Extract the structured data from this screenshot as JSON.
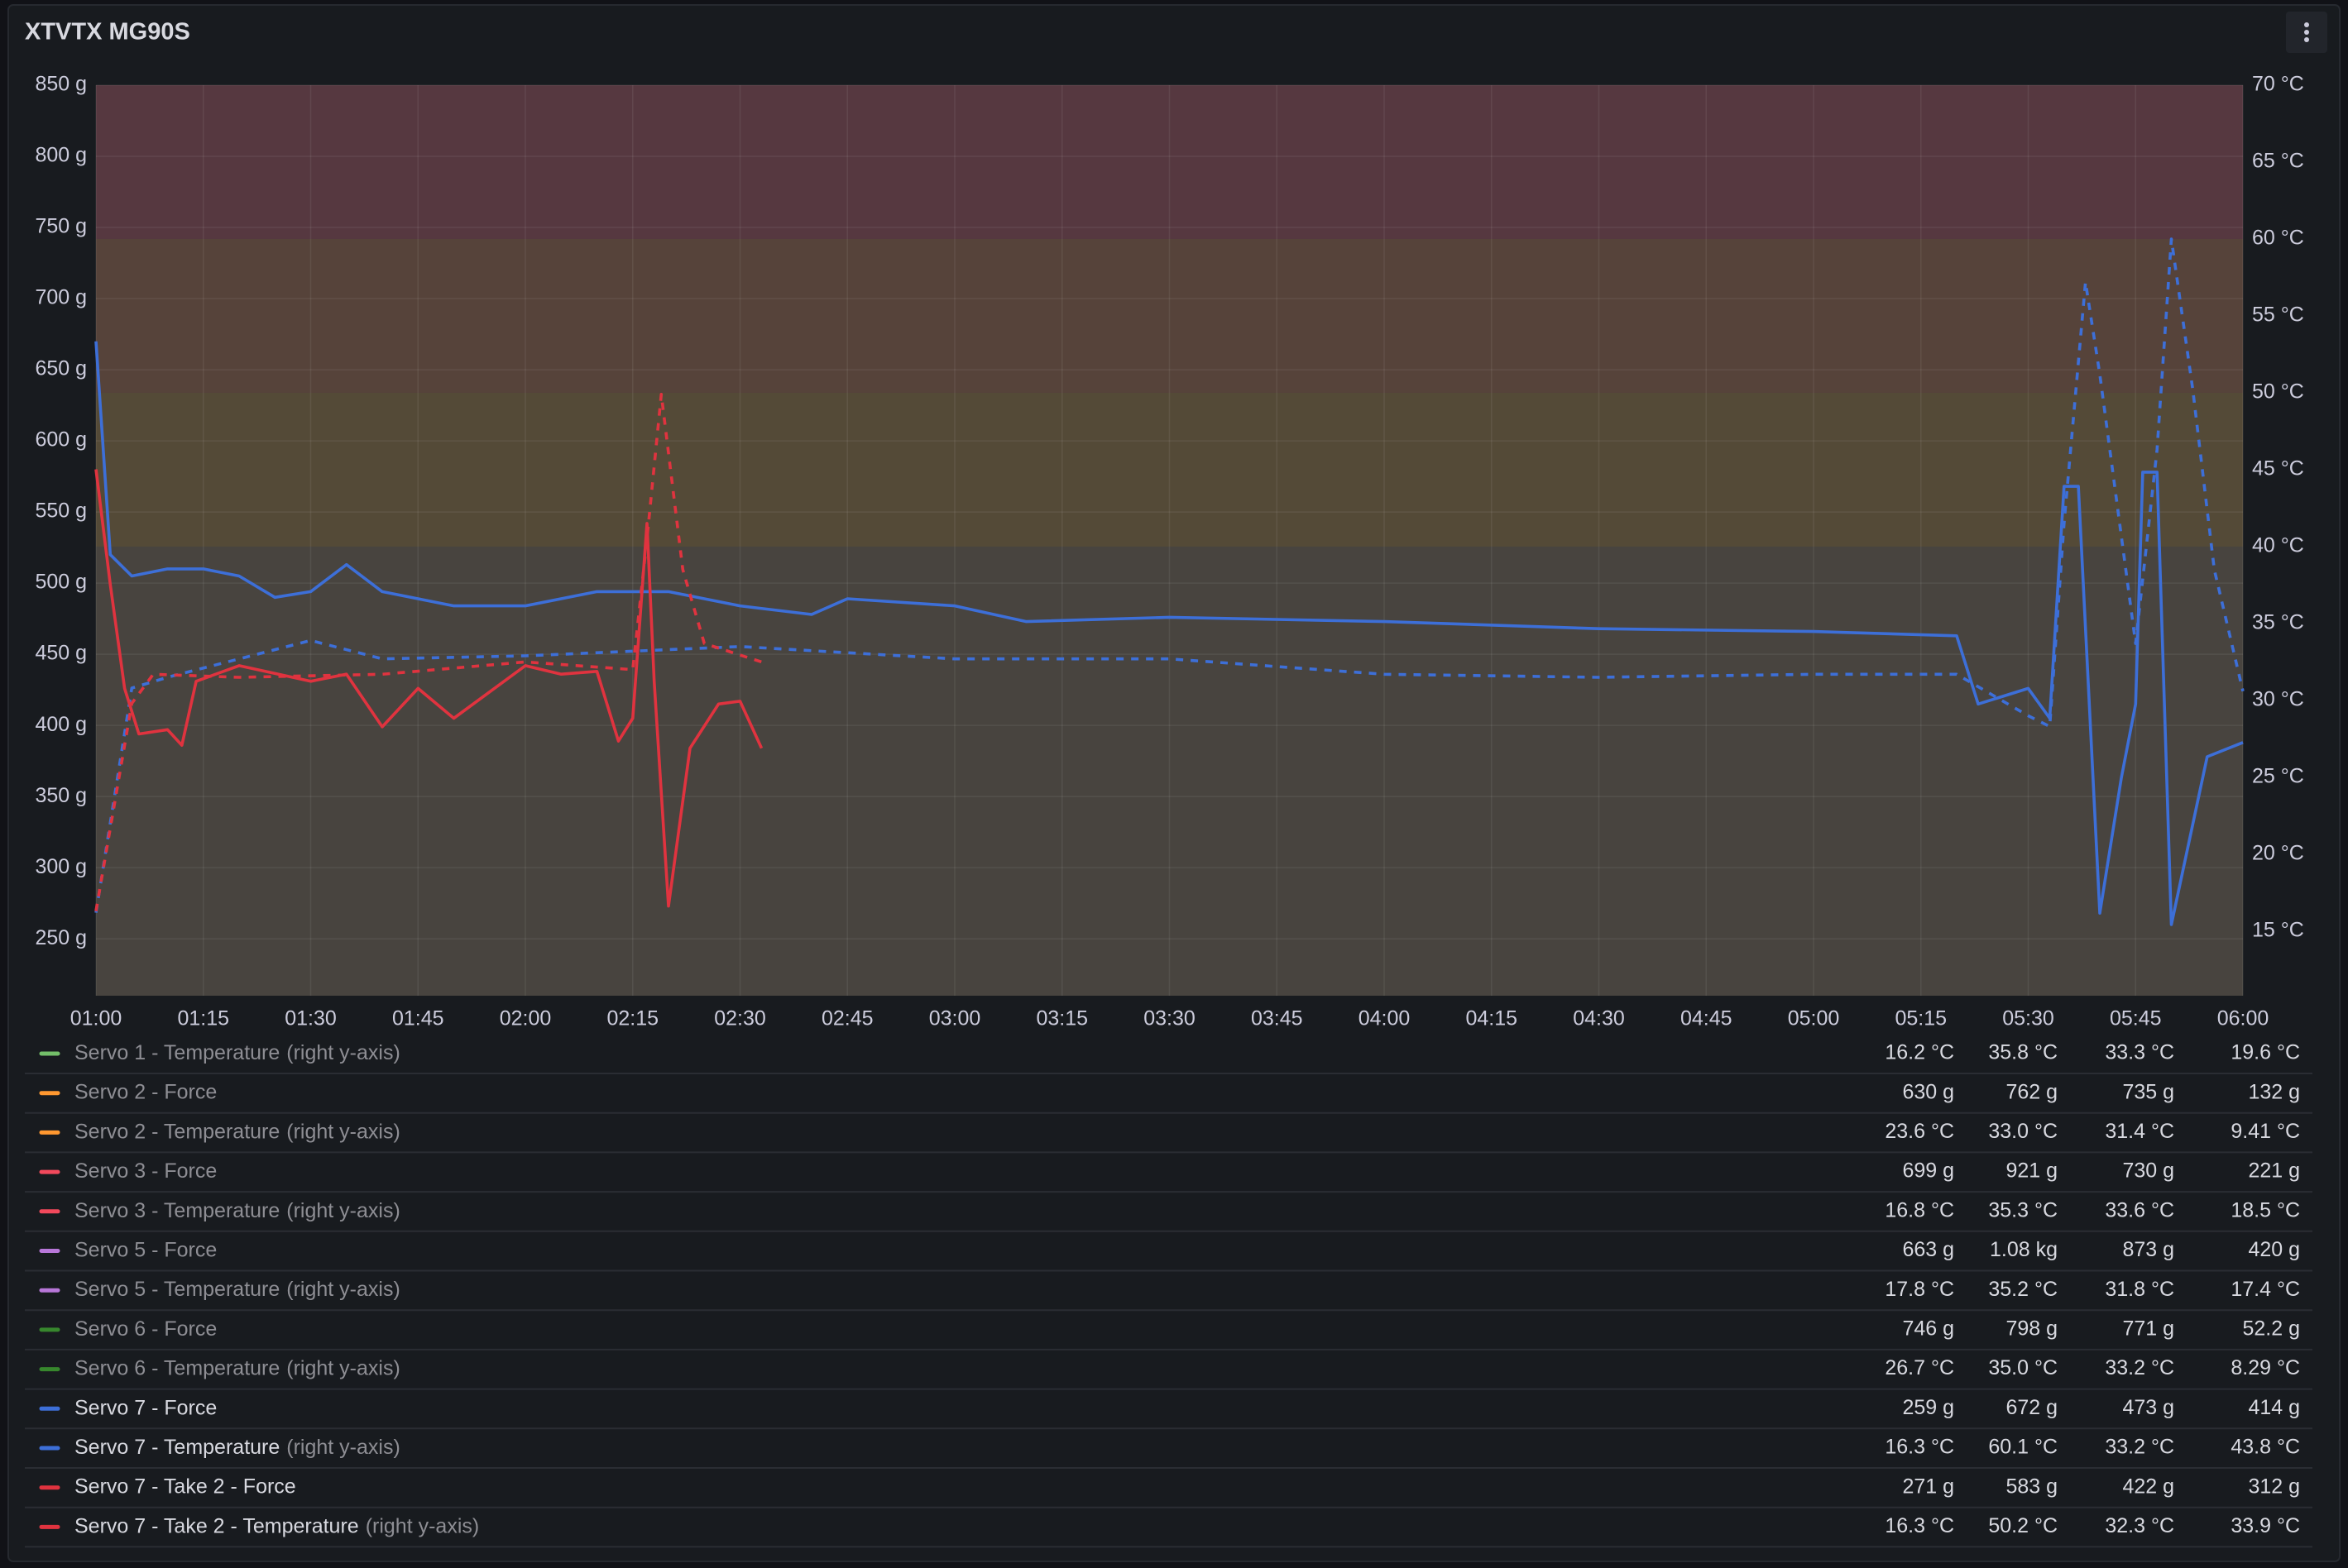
{
  "chart_data": {
    "type": "line",
    "title": "XTVTX MG90S",
    "axis_note": "(right y-axis)",
    "xlim": [
      60,
      360
    ],
    "xticks": [
      {
        "value": 60,
        "label": "01:00"
      },
      {
        "value": 75,
        "label": "01:15"
      },
      {
        "value": 90,
        "label": "01:30"
      },
      {
        "value": 105,
        "label": "01:45"
      },
      {
        "value": 120,
        "label": "02:00"
      },
      {
        "value": 135,
        "label": "02:15"
      },
      {
        "value": 150,
        "label": "02:30"
      },
      {
        "value": 165,
        "label": "02:45"
      },
      {
        "value": 180,
        "label": "03:00"
      },
      {
        "value": 195,
        "label": "03:15"
      },
      {
        "value": 210,
        "label": "03:30"
      },
      {
        "value": 225,
        "label": "03:45"
      },
      {
        "value": 240,
        "label": "04:00"
      },
      {
        "value": 255,
        "label": "04:15"
      },
      {
        "value": 270,
        "label": "04:30"
      },
      {
        "value": 285,
        "label": "04:45"
      },
      {
        "value": 300,
        "label": "05:00"
      },
      {
        "value": 315,
        "label": "05:15"
      },
      {
        "value": 330,
        "label": "05:30"
      },
      {
        "value": 345,
        "label": "05:45"
      },
      {
        "value": 360,
        "label": "06:00"
      }
    ],
    "ylim": [
      210,
      850
    ],
    "yticks": [
      {
        "value": 250,
        "label": "250 g"
      },
      {
        "value": 300,
        "label": "300 g"
      },
      {
        "value": 350,
        "label": "350 g"
      },
      {
        "value": 400,
        "label": "400 g"
      },
      {
        "value": 450,
        "label": "450 g"
      },
      {
        "value": 500,
        "label": "500 g"
      },
      {
        "value": 550,
        "label": "550 g"
      },
      {
        "value": 600,
        "label": "600 g"
      },
      {
        "value": 650,
        "label": "650 g"
      },
      {
        "value": 700,
        "label": "700 g"
      },
      {
        "value": 750,
        "label": "750 g"
      },
      {
        "value": 800,
        "label": "800 g"
      },
      {
        "value": 850,
        "label": "850 g"
      }
    ],
    "y2lim": [
      10.8,
      70
    ],
    "y2ticks": [
      {
        "value": 15,
        "label": "15 °C"
      },
      {
        "value": 20,
        "label": "20 °C"
      },
      {
        "value": 25,
        "label": "25 °C"
      },
      {
        "value": 30,
        "label": "30 °C"
      },
      {
        "value": 35,
        "label": "35 °C"
      },
      {
        "value": 40,
        "label": "40 °C"
      },
      {
        "value": 45,
        "label": "45 °C"
      },
      {
        "value": 50,
        "label": "50 °C"
      },
      {
        "value": 55,
        "label": "55 °C"
      },
      {
        "value": 60,
        "label": "60 °C"
      },
      {
        "value": 65,
        "label": "65 °C"
      },
      {
        "value": 70,
        "label": "70 °C"
      }
    ],
    "grid": true,
    "threshold_base_color": "#48443f",
    "thresholds": [
      {
        "value": 40,
        "color": "#544a37"
      },
      {
        "value": 50,
        "color": "#56433a"
      },
      {
        "value": 60,
        "color": "#563840"
      }
    ],
    "series": [
      {
        "name": "Servo 1 - Temperature",
        "color": "#73bf69",
        "axis": "y2",
        "hidden": true,
        "stats": [
          "16.2 °C",
          "35.8 °C",
          "33.3 °C",
          "19.6 °C"
        ]
      },
      {
        "name": "Servo 2 - Force",
        "color": "#ff9830",
        "hidden": true,
        "stats": [
          "630 g",
          "762 g",
          "735 g",
          "132 g"
        ]
      },
      {
        "name": "Servo 2 - Temperature",
        "color": "#ff9830",
        "axis": "y2",
        "hidden": true,
        "stats": [
          "23.6 °C",
          "33.0 °C",
          "31.4 °C",
          "9.41 °C"
        ]
      },
      {
        "name": "Servo 3 - Force",
        "color": "#f2495c",
        "hidden": true,
        "stats": [
          "699 g",
          "921 g",
          "730 g",
          "221 g"
        ]
      },
      {
        "name": "Servo 3 - Temperature",
        "color": "#f2495c",
        "axis": "y2",
        "hidden": true,
        "stats": [
          "16.8 °C",
          "35.3 °C",
          "33.6 °C",
          "18.5 °C"
        ]
      },
      {
        "name": "Servo 5 - Force",
        "color": "#b877d9",
        "hidden": true,
        "stats": [
          "663 g",
          "1.08 kg",
          "873 g",
          "420 g"
        ]
      },
      {
        "name": "Servo 5 - Temperature",
        "color": "#b877d9",
        "axis": "y2",
        "hidden": true,
        "stats": [
          "17.8 °C",
          "35.2 °C",
          "31.8 °C",
          "17.4 °C"
        ]
      },
      {
        "name": "Servo 6 - Force",
        "color": "#37872d",
        "hidden": true,
        "stats": [
          "746 g",
          "798 g",
          "771 g",
          "52.2 g"
        ]
      },
      {
        "name": "Servo 6 - Temperature",
        "color": "#37872d",
        "axis": "y2",
        "hidden": true,
        "stats": [
          "26.7 °C",
          "35.0 °C",
          "33.2 °C",
          "8.29 °C"
        ]
      },
      {
        "name": "Servo 7 - Force",
        "color": "#3d6fd8",
        "hidden": false,
        "stats": [
          "259 g",
          "672 g",
          "473 g",
          "414 g"
        ],
        "x": [
          60,
          62,
          65,
          70,
          75,
          80,
          85,
          90,
          95,
          100,
          105,
          110,
          120,
          130,
          135,
          140,
          150,
          160,
          165,
          180,
          190,
          210,
          240,
          270,
          300,
          320,
          323,
          330,
          333,
          335,
          337,
          340,
          343,
          345,
          346,
          348,
          350,
          355,
          360
        ],
        "values": [
          670,
          520,
          505,
          510,
          510,
          505,
          490,
          494,
          513,
          494,
          489,
          484,
          484,
          494,
          494,
          494,
          484,
          478,
          489,
          484,
          473,
          476,
          473,
          468,
          466,
          463,
          415,
          426,
          405,
          568,
          568,
          268,
          363,
          415,
          578,
          578,
          260,
          378,
          388
        ]
      },
      {
        "name": "Servo 7 - Temperature",
        "color": "#3d6fd8",
        "axis": "y2",
        "dash": true,
        "hidden": false,
        "stats": [
          "16.3 °C",
          "60.1 °C",
          "33.2 °C",
          "43.8 °C"
        ],
        "x": [
          60,
          65,
          70,
          80,
          90,
          100,
          120,
          150,
          180,
          210,
          240,
          270,
          300,
          320,
          330,
          333,
          335,
          338,
          340,
          345,
          348,
          350,
          353,
          356,
          360
        ],
        "values": [
          16.2,
          30.8,
          31.5,
          32.7,
          33.9,
          32.7,
          32.9,
          33.5,
          32.7,
          32.7,
          31.7,
          31.5,
          31.7,
          31.7,
          29.0,
          28.3,
          41.5,
          57.2,
          51.2,
          33.7,
          46.3,
          60.0,
          50.2,
          38.5,
          30.6
        ]
      },
      {
        "name": "Servo 7 - Take 2 - Force",
        "color": "#e0333f",
        "hidden": false,
        "stats": [
          "271 g",
          "583 g",
          "422 g",
          "312 g"
        ],
        "x": [
          60,
          62,
          64,
          66,
          70,
          72,
          74,
          80,
          90,
          95,
          100,
          105,
          110,
          120,
          125,
          130,
          133,
          135,
          137,
          138,
          140,
          143,
          147,
          150,
          153
        ],
        "values": [
          580,
          499,
          426,
          394,
          397,
          386,
          431,
          442,
          431,
          436,
          399,
          426,
          405,
          442,
          436,
          438,
          389,
          405,
          542,
          431,
          273,
          384,
          415,
          417,
          384
        ]
      },
      {
        "name": "Servo 7 - Take 2 - Temperature",
        "color": "#e0333f",
        "axis": "y2",
        "dash": true,
        "hidden": false,
        "stats": [
          "16.3 °C",
          "50.2 °C",
          "32.3 °C",
          "33.9 °C"
        ],
        "x": [
          60,
          65,
          68,
          80,
          100,
          120,
          135,
          137,
          139,
          142,
          145,
          153
        ],
        "values": [
          16.3,
          29.8,
          31.7,
          31.5,
          31.7,
          32.5,
          32.0,
          40.5,
          49.9,
          38.5,
          33.7,
          32.5
        ]
      }
    ]
  }
}
